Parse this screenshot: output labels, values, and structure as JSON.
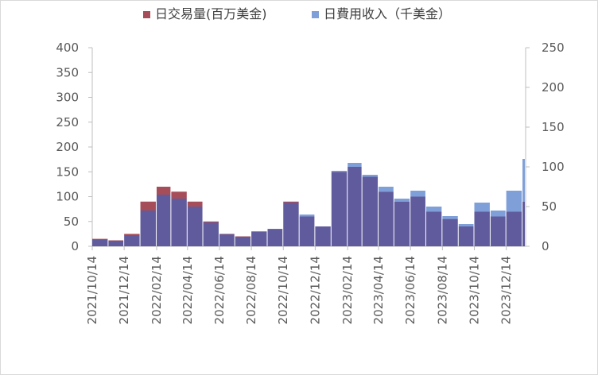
{
  "chart_data": {
    "type": "bar",
    "legend_position": "top",
    "grid": false,
    "series": [
      {
        "name": "日交易量(百万美金)",
        "axis": "left",
        "color": "#a64d5a",
        "dates": [
          "2021/10/14",
          "2021/11/14",
          "2021/12/14",
          "2022/01/14",
          "2022/02/14",
          "2022/03/14",
          "2022/04/14",
          "2022/05/14",
          "2022/06/14",
          "2022/07/14",
          "2022/08/14",
          "2022/09/14",
          "2022/10/14",
          "2022/11/14",
          "2022/12/14",
          "2023/01/14",
          "2023/02/14",
          "2023/03/14",
          "2023/04/14",
          "2023/05/14",
          "2023/06/14",
          "2023/07/14",
          "2023/08/14",
          "2023/09/14",
          "2023/10/14",
          "2023/11/14",
          "2023/12/14",
          "2024/01/14"
        ],
        "values": [
          15,
          12,
          25,
          90,
          120,
          110,
          90,
          50,
          25,
          20,
          30,
          35,
          90,
          60,
          40,
          150,
          160,
          140,
          110,
          90,
          100,
          70,
          55,
          40,
          70,
          60,
          70,
          90
        ]
      },
      {
        "name": "日費用收入（千美金）",
        "axis": "right",
        "color": "#7f9fd9",
        "dates": [
          "2021/10/14",
          "2021/11/14",
          "2021/12/14",
          "2022/01/14",
          "2022/02/14",
          "2022/03/14",
          "2022/04/14",
          "2022/05/14",
          "2022/06/14",
          "2022/07/14",
          "2022/08/14",
          "2022/09/14",
          "2022/10/14",
          "2022/11/14",
          "2022/12/14",
          "2023/01/14",
          "2023/02/14",
          "2023/03/14",
          "2023/04/14",
          "2023/05/14",
          "2023/06/14",
          "2023/07/14",
          "2023/08/14",
          "2023/09/14",
          "2023/10/14",
          "2023/11/14",
          "2023/12/14",
          "2024/01/14"
        ],
        "values": [
          8,
          7,
          14,
          45,
          65,
          60,
          50,
          30,
          15,
          12,
          18,
          22,
          55,
          40,
          25,
          95,
          105,
          90,
          75,
          60,
          70,
          50,
          38,
          28,
          55,
          45,
          70,
          110
        ]
      }
    ],
    "y_left": {
      "min": 0,
      "max": 400,
      "ticks": [
        "0",
        "50",
        "100",
        "150",
        "200",
        "250",
        "300",
        "350",
        "400"
      ]
    },
    "y_right": {
      "min": 0,
      "max": 250,
      "ticks": [
        "0",
        "50",
        "100",
        "150",
        "200",
        "250"
      ]
    },
    "x_ticks": [
      "2021/10/14",
      "2021/12/14",
      "2022/02/14",
      "2022/04/14",
      "2022/06/14",
      "2022/08/14",
      "2022/10/14",
      "2022/12/14",
      "2023/02/14",
      "2023/04/14",
      "2023/06/14",
      "2023/08/14",
      "2023/10/14",
      "2023/12/14"
    ],
    "x_range": [
      "2021/10/14",
      "2024/01/20"
    ],
    "overlap_color": "#5f5b9c",
    "axis_color": "#bfbfbf",
    "text_color": "#595959"
  }
}
